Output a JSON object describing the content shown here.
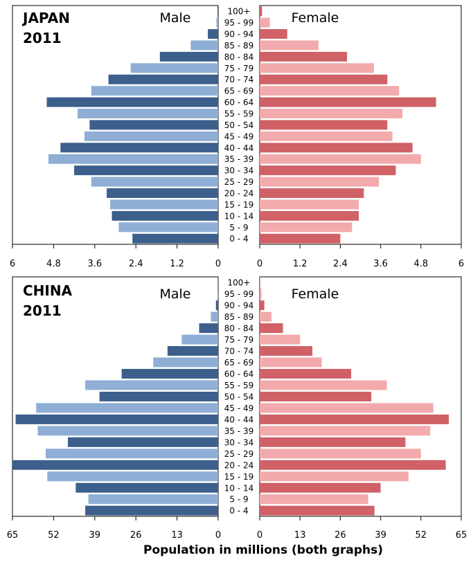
{
  "colors": {
    "male_dark": "#3c5f8c",
    "male_light": "#8eaed5",
    "female_dark": "#cf6167",
    "female_light": "#f2aaac",
    "axis": "#000000"
  },
  "footer_label": "Population in millions (both graphs)",
  "chart_data": [
    {
      "type": "bar",
      "title_line1": "JAPAN",
      "title_line2": "2011",
      "male_label": "Male",
      "female_label": "Female",
      "xlim": [
        0,
        6
      ],
      "ticks": [
        0,
        1.2,
        2.4,
        3.6,
        4.8,
        6
      ],
      "tick_labels_left": [
        "6",
        "4.8",
        "3.6",
        "2.4",
        "1.2",
        "0"
      ],
      "tick_labels_right": [
        "0",
        "1.2",
        "2.4",
        "3.6",
        "4.8",
        "6"
      ],
      "categories": [
        "100+",
        "95 - 99",
        "90 - 94",
        "85 - 89",
        "80 - 84",
        "75 - 79",
        "70 - 74",
        "65 - 69",
        "60 - 64",
        "55 - 59",
        "50 - 54",
        "45 - 49",
        "40 - 44",
        "35 - 39",
        "30 - 34",
        "25 - 29",
        "20 - 24",
        "15 - 19",
        "10 - 14",
        "5 - 9",
        "0 - 4"
      ],
      "series": [
        {
          "name": "Male",
          "values": [
            0.02,
            0.05,
            0.3,
            0.8,
            1.7,
            2.55,
            3.2,
            3.7,
            5.0,
            4.1,
            3.75,
            3.9,
            4.6,
            4.95,
            4.2,
            3.7,
            3.25,
            3.15,
            3.1,
            2.9,
            2.5
          ]
        },
        {
          "name": "Female",
          "values": [
            0.07,
            0.3,
            0.82,
            1.75,
            2.6,
            3.4,
            3.8,
            4.15,
            5.25,
            4.25,
            3.8,
            3.95,
            4.55,
            4.8,
            4.05,
            3.55,
            3.1,
            2.95,
            2.95,
            2.75,
            2.4
          ]
        }
      ]
    },
    {
      "type": "bar",
      "title_line1": "CHINA",
      "title_line2": "2011",
      "male_label": "Male",
      "female_label": "Female",
      "xlim": [
        0,
        65
      ],
      "ticks": [
        0,
        13,
        26,
        39,
        52,
        65
      ],
      "tick_labels_left": [
        "65",
        "52",
        "39",
        "26",
        "13",
        "0"
      ],
      "tick_labels_right": [
        "0",
        "13",
        "26",
        "39",
        "52",
        "65"
      ],
      "categories": [
        "100+",
        "95 - 99",
        "90 - 94",
        "85 - 89",
        "80 - 84",
        "75 - 79",
        "70 - 74",
        "65 - 69",
        "60 - 64",
        "55 - 59",
        "50 - 54",
        "45 - 49",
        "40 - 44",
        "35 - 39",
        "30 - 34",
        "25 - 29",
        "20 - 24",
        "15 - 19",
        "10 - 14",
        "5 - 9",
        "0 - 4"
      ],
      "series": [
        {
          "name": "Male",
          "values": [
            0.05,
            0.2,
            0.7,
            2.3,
            6.0,
            11.5,
            16.0,
            20.5,
            30.5,
            42.0,
            37.5,
            57.5,
            64.0,
            57.0,
            47.5,
            54.5,
            65.0,
            54.0,
            45.0,
            41.0,
            42.0
          ]
        },
        {
          "name": "Female",
          "values": [
            0.15,
            0.6,
            1.5,
            3.8,
            7.5,
            13.0,
            17.0,
            20.0,
            29.5,
            41.0,
            36.0,
            56.0,
            61.0,
            55.0,
            47.0,
            52.0,
            60.0,
            48.0,
            39.0,
            35.0,
            37.0
          ]
        }
      ]
    }
  ]
}
